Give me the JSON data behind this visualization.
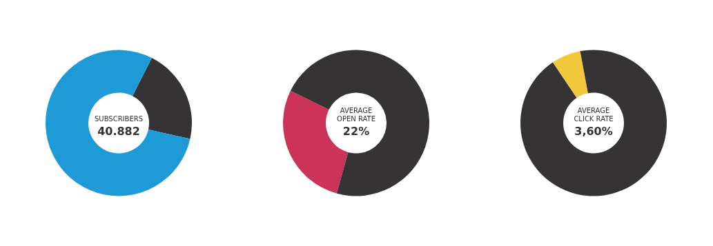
{
  "chart_data": [
    {
      "type": "donut",
      "categories": [
        null,
        null
      ],
      "values": [
        21,
        79
      ],
      "colors": [
        "#363334",
        "#1e9ad6"
      ],
      "annotations": [
        "SUBSCRIBERS",
        "40.882"
      ]
    },
    {
      "type": "donut",
      "categories": [
        null,
        null
      ],
      "values": [
        28,
        72
      ],
      "colors": [
        "#cc3358",
        "#363334"
      ],
      "annotations": [
        "AVERAGE\nOPEN RATE",
        "22%"
      ]
    },
    {
      "type": "donut",
      "categories": [
        null,
        null
      ],
      "values": [
        6.5,
        93.5
      ],
      "colors": [
        "#f2c83c",
        "#363334"
      ],
      "annotations": [
        "AVERAGE\nCLICK RATE",
        "3,60%"
      ]
    }
  ]
}
